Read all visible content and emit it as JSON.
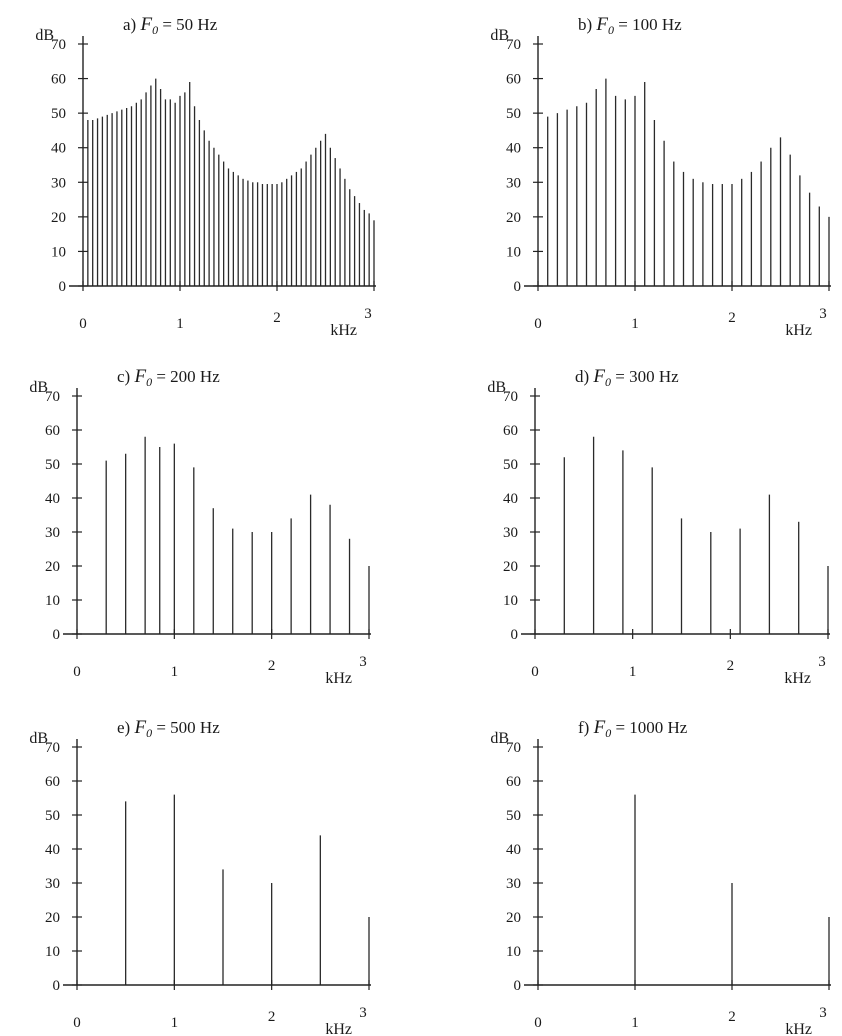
{
  "chart_data": [
    {
      "type": "bar",
      "title_prefix": "a)",
      "title_var": "F",
      "title_sub": "0",
      "title_suffix": " = 50 Hz",
      "xlabel": "kHz",
      "ylabel": "dB",
      "xlim": [
        0,
        3
      ],
      "ylim": [
        0,
        70
      ],
      "xticks": [
        0,
        1,
        2,
        3
      ],
      "yticks": [
        0,
        10,
        20,
        30,
        40,
        50,
        60,
        70
      ],
      "x": [
        0.05,
        0.1,
        0.15,
        0.2,
        0.25,
        0.3,
        0.35,
        0.4,
        0.45,
        0.5,
        0.55,
        0.6,
        0.65,
        0.7,
        0.75,
        0.8,
        0.85,
        0.9,
        0.95,
        1.0,
        1.05,
        1.1,
        1.15,
        1.2,
        1.25,
        1.3,
        1.35,
        1.4,
        1.45,
        1.5,
        1.55,
        1.6,
        1.65,
        1.7,
        1.75,
        1.8,
        1.85,
        1.9,
        1.95,
        2.0,
        2.05,
        2.1,
        2.15,
        2.2,
        2.25,
        2.3,
        2.35,
        2.4,
        2.45,
        2.5,
        2.55,
        2.6,
        2.65,
        2.7,
        2.75,
        2.8,
        2.85,
        2.9,
        2.95,
        3.0
      ],
      "values": [
        48,
        48,
        48.5,
        49,
        49.5,
        50,
        50.5,
        51,
        51.5,
        52,
        53,
        54,
        56,
        58,
        60,
        57,
        54,
        54,
        53,
        55,
        56,
        59,
        52,
        48,
        45,
        42,
        40,
        38,
        36,
        34,
        33,
        32,
        31,
        30.5,
        30,
        30,
        29.5,
        29.5,
        29.5,
        29.5,
        30,
        31,
        32,
        33,
        34,
        36,
        38,
        40,
        42,
        44,
        40,
        37,
        34,
        31,
        28,
        26,
        24,
        22,
        21,
        19
      ]
    },
    {
      "type": "bar",
      "title_prefix": "b)",
      "title_var": "F",
      "title_sub": "0",
      "title_suffix": " = 100 Hz",
      "xlabel": "kHz",
      "ylabel": "dB",
      "xlim": [
        0,
        3
      ],
      "ylim": [
        0,
        70
      ],
      "xticks": [
        0,
        1,
        2,
        3
      ],
      "yticks": [
        0,
        10,
        20,
        30,
        40,
        50,
        60,
        70
      ],
      "x": [
        0.1,
        0.2,
        0.3,
        0.4,
        0.5,
        0.6,
        0.7,
        0.8,
        0.9,
        1.0,
        1.1,
        1.2,
        1.3,
        1.4,
        1.5,
        1.6,
        1.7,
        1.8,
        1.9,
        2.0,
        2.1,
        2.2,
        2.3,
        2.4,
        2.5,
        2.6,
        2.7,
        2.8,
        2.9,
        3.0
      ],
      "values": [
        49,
        50,
        51,
        52,
        53,
        57,
        60,
        55,
        54,
        55,
        59,
        48,
        42,
        36,
        33,
        31,
        30,
        29.5,
        29.5,
        29.5,
        31,
        33,
        36,
        40,
        43,
        38,
        32,
        27,
        23,
        20
      ]
    },
    {
      "type": "bar",
      "title_prefix": "c)",
      "title_var": "F",
      "title_sub": "0",
      "title_suffix": " = 200 Hz",
      "xlabel": "kHz",
      "ylabel": "dB",
      "xlim": [
        0,
        3
      ],
      "ylim": [
        0,
        70
      ],
      "xticks": [
        0,
        1,
        2,
        3
      ],
      "yticks": [
        0,
        10,
        20,
        30,
        40,
        50,
        60,
        70
      ],
      "x": [
        0.3,
        0.5,
        0.7,
        0.85,
        1.0,
        1.2,
        1.4,
        1.6,
        1.8,
        2.0,
        2.2,
        2.4,
        2.6,
        2.8,
        3.0
      ],
      "values": [
        51,
        53,
        58,
        55,
        56,
        49,
        37,
        31,
        30,
        30,
        34,
        41,
        38,
        28,
        20
      ]
    },
    {
      "type": "bar",
      "title_prefix": "d)",
      "title_var": "F",
      "title_sub": "0",
      "title_suffix": " = 300 Hz",
      "xlabel": "kHz",
      "ylabel": "dB",
      "xlim": [
        0,
        3
      ],
      "ylim": [
        0,
        70
      ],
      "xticks": [
        0,
        1,
        2,
        3
      ],
      "yticks": [
        0,
        10,
        20,
        30,
        40,
        50,
        60,
        70
      ],
      "x": [
        0.3,
        0.6,
        0.9,
        1.2,
        1.5,
        1.8,
        2.1,
        2.4,
        2.7,
        3.0
      ],
      "values": [
        52,
        58,
        54,
        49,
        34,
        30,
        31,
        41,
        33,
        20
      ]
    },
    {
      "type": "bar",
      "title_prefix": "e)",
      "title_var": "F",
      "title_sub": "0",
      "title_suffix": " = 500 Hz",
      "xlabel": "kHz",
      "ylabel": "dB",
      "xlim": [
        0,
        3
      ],
      "ylim": [
        0,
        70
      ],
      "xticks": [
        0,
        1,
        2,
        3
      ],
      "yticks": [
        0,
        10,
        20,
        30,
        40,
        50,
        60,
        70
      ],
      "x": [
        0.5,
        1.0,
        1.5,
        2.0,
        2.5,
        3.0
      ],
      "values": [
        54,
        56,
        34,
        30,
        44,
        20
      ]
    },
    {
      "type": "bar",
      "title_prefix": "f)",
      "title_var": "F",
      "title_sub": "0",
      "title_suffix": " = 1000 Hz",
      "xlabel": "kHz",
      "ylabel": "dB",
      "xlim": [
        0,
        3
      ],
      "ylim": [
        0,
        70
      ],
      "xticks": [
        0,
        1,
        2,
        3
      ],
      "yticks": [
        0,
        10,
        20,
        30,
        40,
        50,
        60,
        70
      ],
      "x": [
        1.0,
        2.0,
        3.0
      ],
      "values": [
        56,
        30,
        20
      ]
    }
  ]
}
